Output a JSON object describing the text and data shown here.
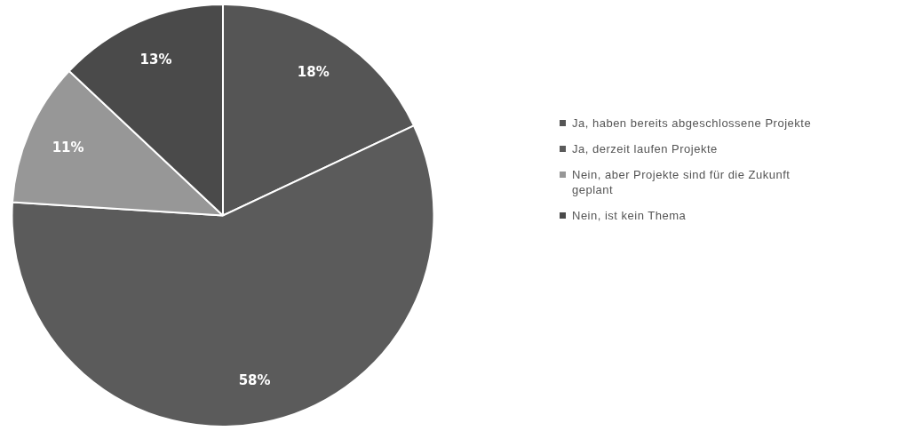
{
  "chart_data": {
    "type": "pie",
    "categories": [
      "Ja, haben bereits abgeschlossene Projekte",
      "Ja, derzeit laufen Projekte",
      "Nein, aber Projekte sind für die Zukunft geplant",
      "Nein, ist kein Thema"
    ],
    "values": [
      18,
      58,
      11,
      13
    ],
    "colors": [
      "#555555",
      "#5b5b5b",
      "#979797",
      "#4a4a4a"
    ],
    "value_labels": [
      "18%",
      "58%",
      "11%",
      "13%"
    ],
    "legend": "right"
  }
}
